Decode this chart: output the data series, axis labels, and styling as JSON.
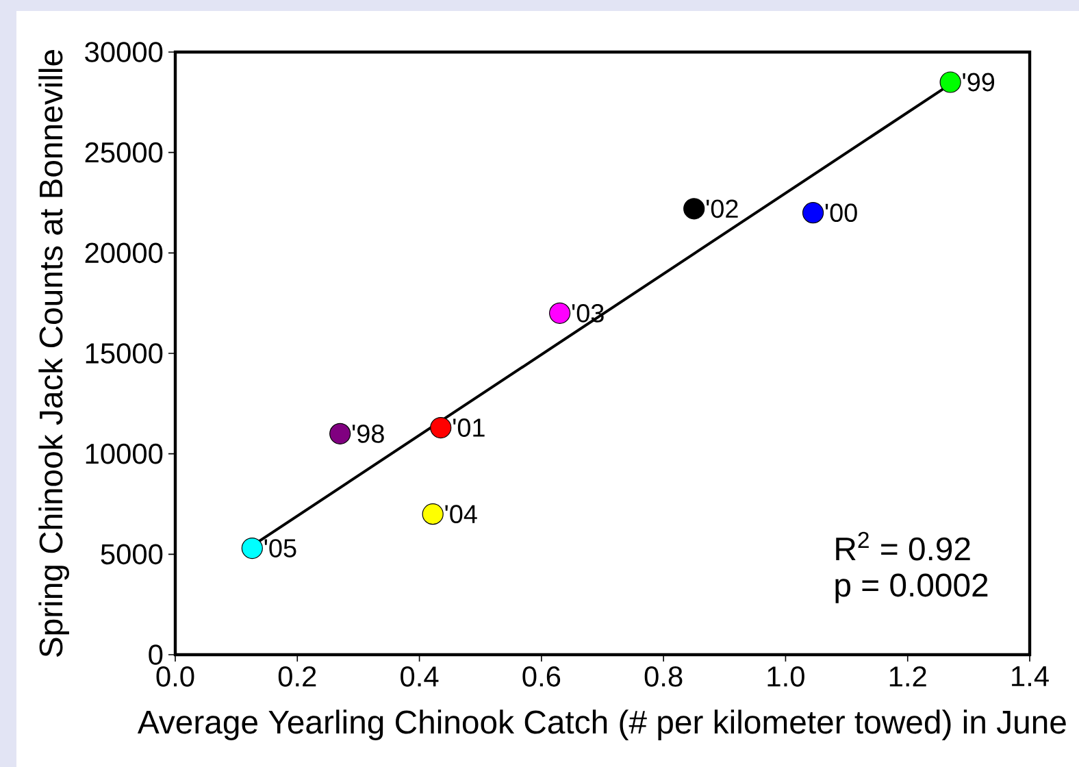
{
  "chart_data": {
    "type": "scatter",
    "xlabel": "Average Yearling Chinook Catch (# per kilometer towed) in June",
    "ylabel": "Spring Chinook Jack Counts at Bonneville",
    "series": [
      {
        "marker": "circle",
        "x": [
          0.126,
          0.27,
          0.422,
          0.435,
          0.63,
          0.85,
          1.045,
          1.27
        ],
        "values": [
          5300,
          11000,
          7000,
          11300,
          17000,
          22200,
          22000,
          28500
        ],
        "colors": [
          "#00ffff",
          "#800080",
          "#ffff00",
          "#ff0000",
          "#ff00ff",
          "#000000",
          "#0000ff",
          "#00ff00"
        ]
      },
      {
        "type": "line",
        "x": [
          0.13,
          1.265
        ],
        "values": [
          5500,
          28300
        ],
        "color": "#000000",
        "marker": "none"
      }
    ],
    "xlim": [
      0,
      1.4
    ],
    "ylim": [
      0,
      30000
    ],
    "xticks": [
      {
        "value": 0,
        "label": "0.0"
      },
      {
        "value": 0.2,
        "label": "0.2"
      },
      {
        "value": 0.4,
        "label": "0.4"
      },
      {
        "value": 0.6,
        "label": "0.6"
      },
      {
        "value": 0.8,
        "label": "0.8"
      },
      {
        "value": 1.0,
        "label": "1.0"
      },
      {
        "value": 1.2,
        "label": "1.2"
      },
      {
        "value": 1.4,
        "label": "1.4"
      }
    ],
    "yticks": [
      0,
      5000,
      10000,
      15000,
      20000,
      25000,
      30000
    ],
    "annotations": [
      {
        "text": "'05",
        "x": 0.126,
        "y": 5300
      },
      {
        "text": "'98",
        "x": 0.27,
        "y": 11000
      },
      {
        "text": "'04",
        "x": 0.422,
        "y": 7000
      },
      {
        "text": "'01",
        "x": 0.435,
        "y": 11300
      },
      {
        "text": "'03",
        "x": 0.63,
        "y": 17000
      },
      {
        "text": "'02",
        "x": 0.85,
        "y": 22200
      },
      {
        "text": "'00",
        "x": 1.045,
        "y": 22000
      },
      {
        "text": "'99",
        "x": 1.27,
        "y": 28500
      },
      "R$^{2}$ = 0.92",
      "p = 0.0002"
    ]
  }
}
